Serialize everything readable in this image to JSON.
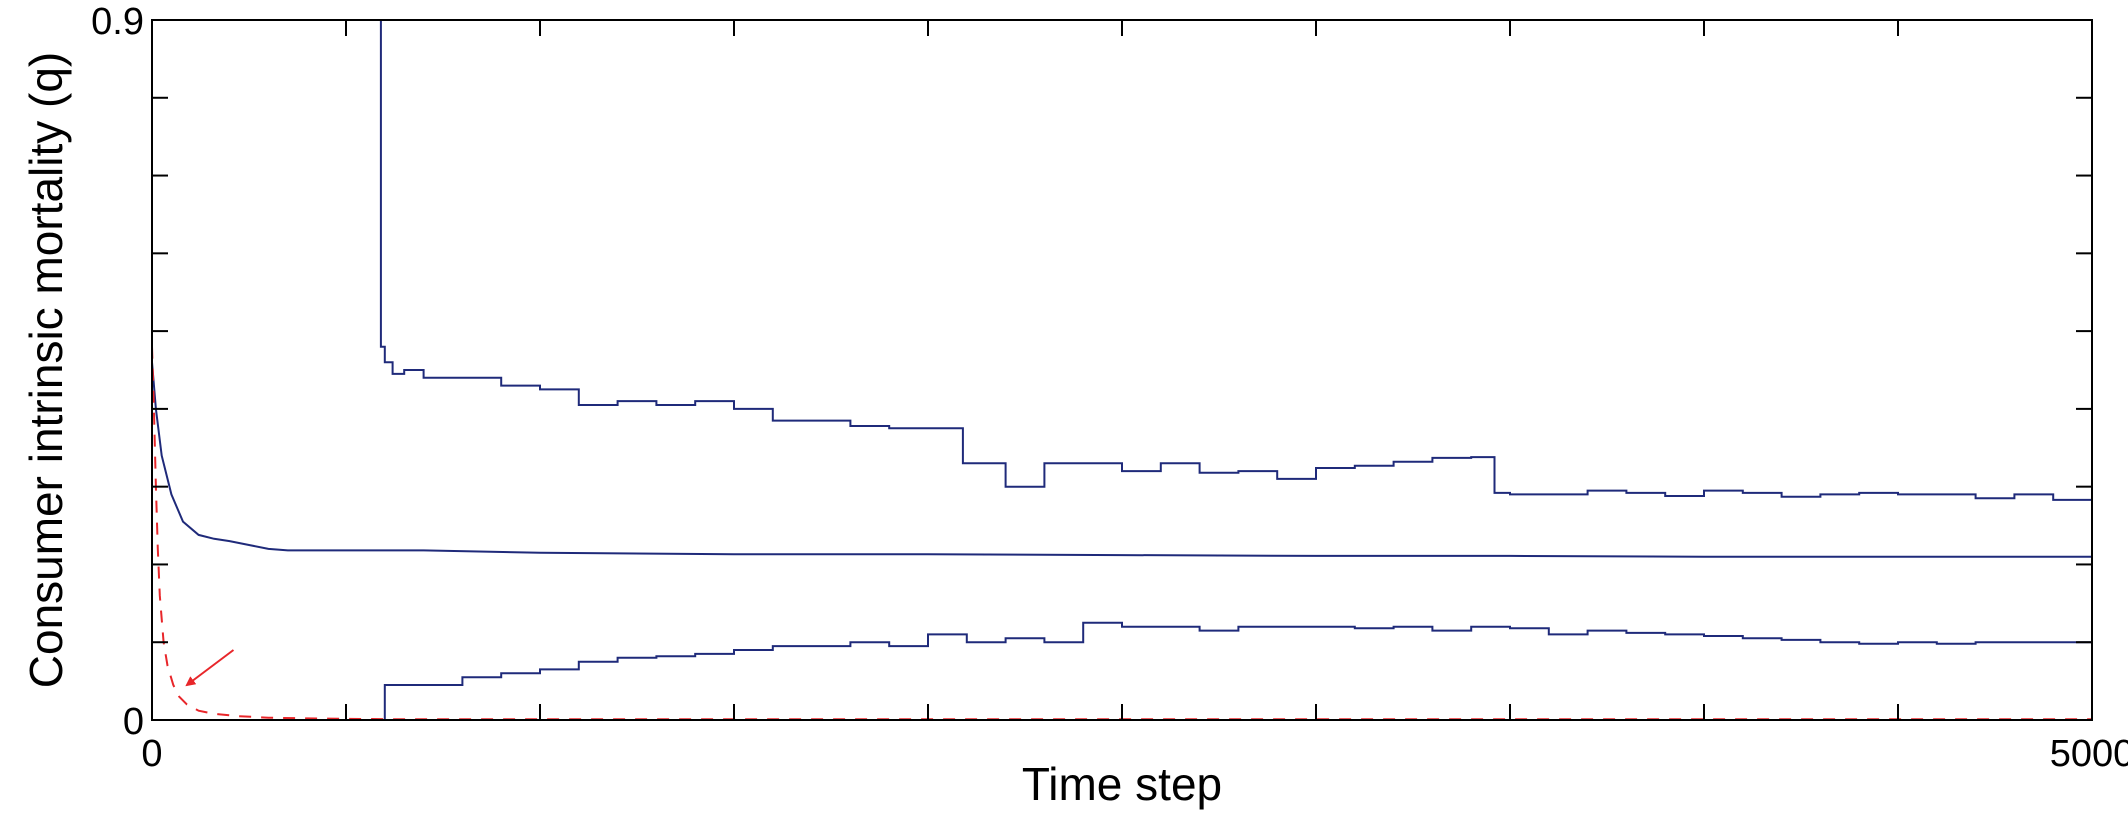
{
  "chart_data": {
    "type": "line",
    "title": "",
    "xlabel": "Time step",
    "ylabel": "Consumer intrinsic mortality (q)",
    "xlim": [
      0,
      5000
    ],
    "ylim": [
      0,
      0.9
    ],
    "x_tick_labels": [
      {
        "value": 0,
        "label": "0"
      },
      {
        "value": 5000,
        "label": "5000"
      }
    ],
    "y_tick_labels": [
      {
        "value": 0,
        "label": "0"
      },
      {
        "value": 0.9,
        "label": "0.9"
      }
    ],
    "x_minor_ticks": [
      500,
      1000,
      1500,
      2000,
      2500,
      3000,
      3500,
      4000,
      4500
    ],
    "y_minor_ticks": [
      0.1,
      0.2,
      0.3,
      0.4,
      0.5,
      0.6,
      0.7,
      0.8
    ],
    "grid": false,
    "legend": "none",
    "series": [
      {
        "color": "#1f2a7a",
        "style": "solid",
        "step": true,
        "x": [
          0,
          590,
          590,
          600,
          620,
          650,
          700,
          800,
          900,
          1000,
          1100,
          1200,
          1300,
          1400,
          1500,
          1600,
          1700,
          1800,
          1900,
          2000,
          2080,
          2090,
          2100,
          2200,
          2300,
          2400,
          2500,
          2600,
          2700,
          2800,
          2900,
          3000,
          3100,
          3200,
          3300,
          3400,
          3450,
          3460,
          3500,
          3600,
          3700,
          3800,
          3900,
          4000,
          4100,
          4200,
          4300,
          4400,
          4500,
          4600,
          4700,
          4800,
          4900,
          5000
        ],
        "y": [
          0.9,
          0.9,
          0.48,
          0.46,
          0.445,
          0.45,
          0.44,
          0.44,
          0.43,
          0.425,
          0.405,
          0.41,
          0.405,
          0.41,
          0.4,
          0.385,
          0.385,
          0.378,
          0.375,
          0.375,
          0.375,
          0.33,
          0.33,
          0.3,
          0.33,
          0.33,
          0.32,
          0.33,
          0.318,
          0.32,
          0.31,
          0.324,
          0.327,
          0.332,
          0.337,
          0.338,
          0.338,
          0.292,
          0.29,
          0.29,
          0.295,
          0.292,
          0.288,
          0.295,
          0.292,
          0.287,
          0.29,
          0.292,
          0.29,
          0.29,
          0.285,
          0.29,
          0.283,
          0.287
        ]
      },
      {
        "color": "#1f2a7a",
        "style": "solid",
        "step": false,
        "x": [
          0,
          10,
          25,
          50,
          80,
          120,
          160,
          200,
          250,
          300,
          350,
          400,
          500,
          700,
          1000,
          1500,
          2000,
          2500,
          3000,
          3500,
          4000,
          4500,
          5000
        ],
        "y": [
          0.46,
          0.4,
          0.34,
          0.29,
          0.255,
          0.238,
          0.233,
          0.23,
          0.225,
          0.22,
          0.218,
          0.218,
          0.218,
          0.218,
          0.215,
          0.213,
          0.213,
          0.212,
          0.211,
          0.211,
          0.21,
          0.21,
          0.21
        ]
      },
      {
        "color": "#1f2a7a",
        "style": "solid",
        "step": true,
        "x": [
          0,
          600,
          600,
          700,
          800,
          900,
          1000,
          1100,
          1200,
          1300,
          1400,
          1500,
          1600,
          1700,
          1800,
          1900,
          2000,
          2100,
          2200,
          2300,
          2400,
          2500,
          2600,
          2700,
          2800,
          2900,
          3000,
          3100,
          3200,
          3300,
          3400,
          3500,
          3600,
          3700,
          3800,
          3900,
          4000,
          4100,
          4200,
          4300,
          4400,
          4500,
          4600,
          4700,
          4800,
          4900,
          5000
        ],
        "y": [
          0,
          0,
          0.045,
          0.045,
          0.055,
          0.06,
          0.065,
          0.075,
          0.08,
          0.082,
          0.085,
          0.09,
          0.095,
          0.095,
          0.1,
          0.095,
          0.11,
          0.1,
          0.105,
          0.1,
          0.125,
          0.12,
          0.12,
          0.115,
          0.12,
          0.12,
          0.12,
          0.118,
          0.12,
          0.115,
          0.12,
          0.118,
          0.11,
          0.115,
          0.112,
          0.11,
          0.108,
          0.105,
          0.103,
          0.1,
          0.098,
          0.1,
          0.098,
          0.1,
          0.1,
          0.1,
          0.1
        ]
      },
      {
        "color": "#e8262a",
        "style": "dashed",
        "step": false,
        "x": [
          0,
          5,
          10,
          15,
          20,
          30,
          40,
          55,
          70,
          90,
          120,
          160,
          220,
          300,
          400,
          600,
          1000,
          2000,
          3000,
          4000,
          5000
        ],
        "y": [
          0.48,
          0.4,
          0.3,
          0.22,
          0.16,
          0.1,
          0.07,
          0.045,
          0.03,
          0.02,
          0.012,
          0.008,
          0.005,
          0.003,
          0.002,
          0.001,
          0.001,
          0.001,
          0.001,
          0.001,
          0.001
        ]
      }
    ],
    "annotations": [
      {
        "type": "arrow",
        "color": "#e8262a",
        "from": [
          210,
          0.09
        ],
        "to": [
          90,
          0.045
        ]
      }
    ]
  }
}
